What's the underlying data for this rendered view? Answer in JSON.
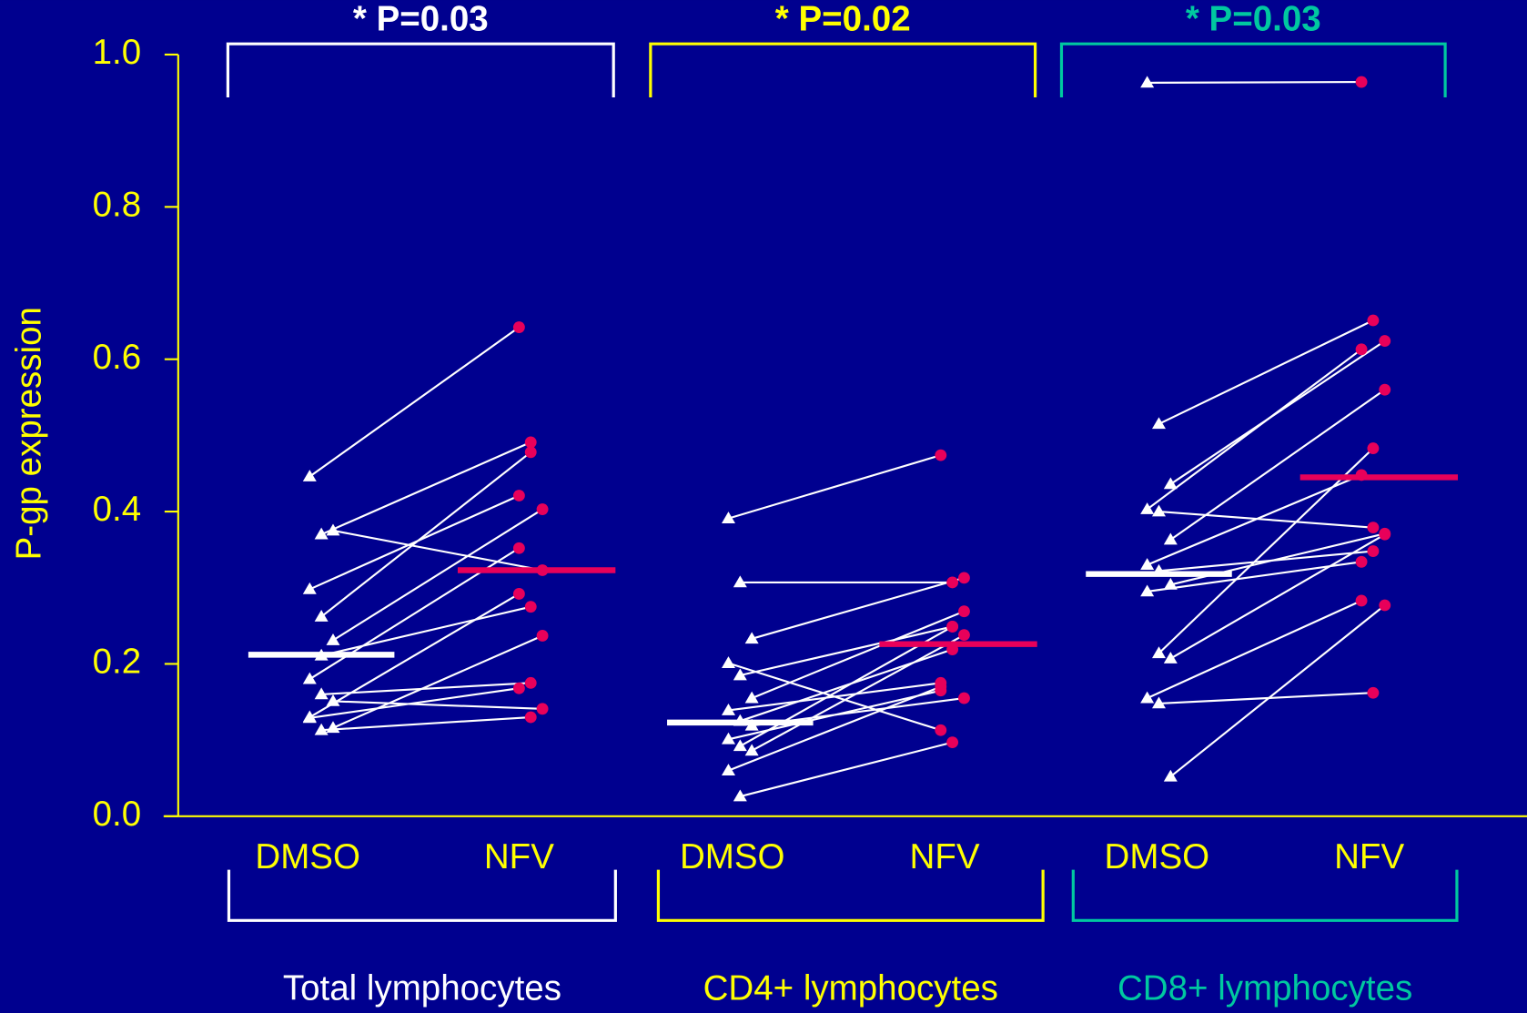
{
  "chart_data": {
    "type": "paired-dot",
    "y_label": "P-gp expression",
    "ylim": [
      0,
      1
    ],
    "yticks": [
      {
        "value": 0,
        "label": "0.0"
      },
      {
        "value": 0.2,
        "label": "0.2"
      },
      {
        "value": 0.4,
        "label": "0.4"
      },
      {
        "value": 0.6,
        "label": "0.6"
      },
      {
        "value": 0.8,
        "label": "0.8"
      },
      {
        "value": 1,
        "label": "1.0"
      }
    ],
    "axis_color": "#ffff00",
    "dmso_color": "#ffffff",
    "nfv_color": "#e8005a",
    "groups": [
      {
        "name": "Total lymphocytes",
        "color": "#ffffff",
        "p_label": "* P=0.03",
        "categories": [
          "DMSO",
          "NFV"
        ],
        "dmso": [
          0.446,
          0.37,
          0.375,
          0.298,
          0.262,
          0.231,
          0.18,
          0.16,
          0.151,
          0.129,
          0.113,
          0.116,
          0.13,
          0.211
        ],
        "nfv": [
          0.642,
          0.491,
          0.323,
          0.421,
          0.478,
          0.403,
          0.352,
          0.175,
          0.141,
          0.168,
          0.13,
          0.237,
          0.292,
          0.275
        ],
        "median": [
          0.212,
          0.323
        ]
      },
      {
        "name": "CD4+ lymphocytes",
        "color": "#ffff00",
        "p_label": "* P=0.02",
        "categories": [
          "DMSO",
          "NFV"
        ],
        "dmso": [
          0.391,
          0.307,
          0.233,
          0.201,
          0.185,
          0.155,
          0.139,
          0.125,
          0.119,
          0.101,
          0.092,
          0.086,
          0.06,
          0.026
        ],
        "nfv": [
          0.474,
          0.307,
          0.313,
          0.113,
          0.249,
          0.269,
          0.175,
          0.219,
          0.155,
          0.165,
          0.249,
          0.238,
          0.17,
          0.097
        ],
        "median": [
          0.123,
          0.226
        ]
      },
      {
        "name": "CD8+ lymphocytes",
        "color": "#00c8a0",
        "p_label": "* P=0.03",
        "categories": [
          "DMSO",
          "NFV"
        ],
        "dmso": [
          0.963,
          0.515,
          0.436,
          0.403,
          0.4,
          0.363,
          0.33,
          0.322,
          0.304,
          0.295,
          0.214,
          0.207,
          0.155,
          0.148,
          0.052
        ],
        "nfv": [
          0.964,
          0.651,
          0.624,
          0.613,
          0.379,
          0.56,
          0.448,
          0.348,
          0.371,
          0.334,
          0.483,
          0.37,
          0.283,
          0.162,
          0.277
        ],
        "median": [
          0.318,
          0.445
        ]
      }
    ]
  }
}
